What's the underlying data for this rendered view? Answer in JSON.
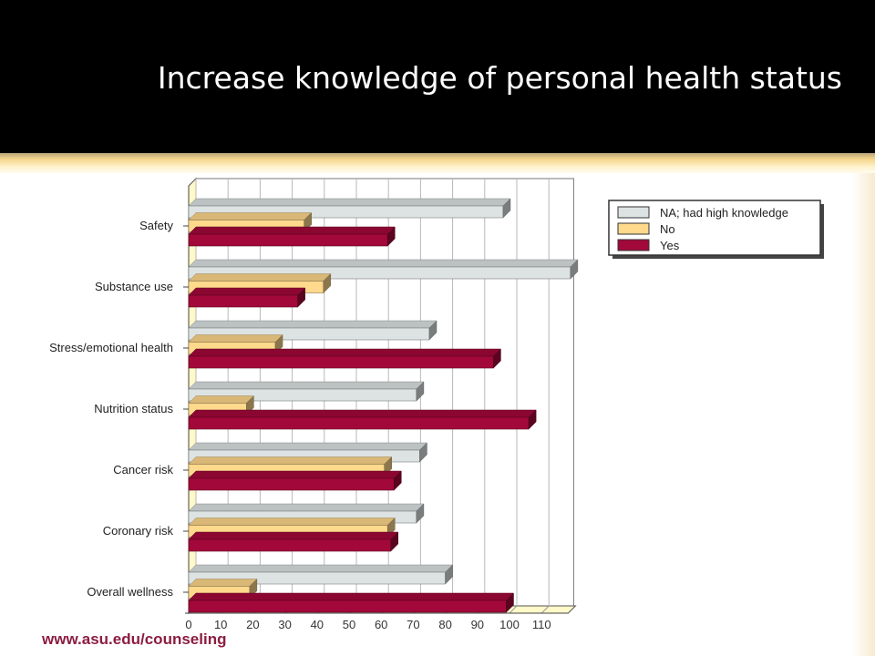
{
  "slide": {
    "title": "Increase knowledge of personal health status",
    "footer_url": "www.asu.edu/counseling"
  },
  "colors": {
    "title_band": "#000000",
    "title_text": "#ffffff",
    "footer_text": "#8c1d40",
    "series": [
      "#dde3e3",
      "#ffd98c",
      "#a3083a"
    ]
  },
  "chart_data": {
    "type": "bar",
    "orientation": "horizontal",
    "style": "3d",
    "categories": [
      "Safety",
      "Substance use",
      "Stress/emotional health",
      "Nutrition status",
      "Cancer risk",
      "Coronary risk",
      "Overall wellness"
    ],
    "series": [
      {
        "name": "NA; had high knowledge",
        "values": [
          98,
          119,
          75,
          71,
          72,
          71,
          80
        ]
      },
      {
        "name": "No",
        "values": [
          36,
          42,
          27,
          18,
          61,
          62,
          19
        ]
      },
      {
        "name": "Yes",
        "values": [
          62,
          34,
          95,
          106,
          64,
          63,
          99
        ]
      }
    ],
    "xlim": [
      0,
      120
    ],
    "xticks": [
      0,
      10,
      20,
      30,
      40,
      50,
      60,
      70,
      80,
      90,
      100,
      110
    ],
    "grid": true,
    "legend_position": "top-right"
  }
}
